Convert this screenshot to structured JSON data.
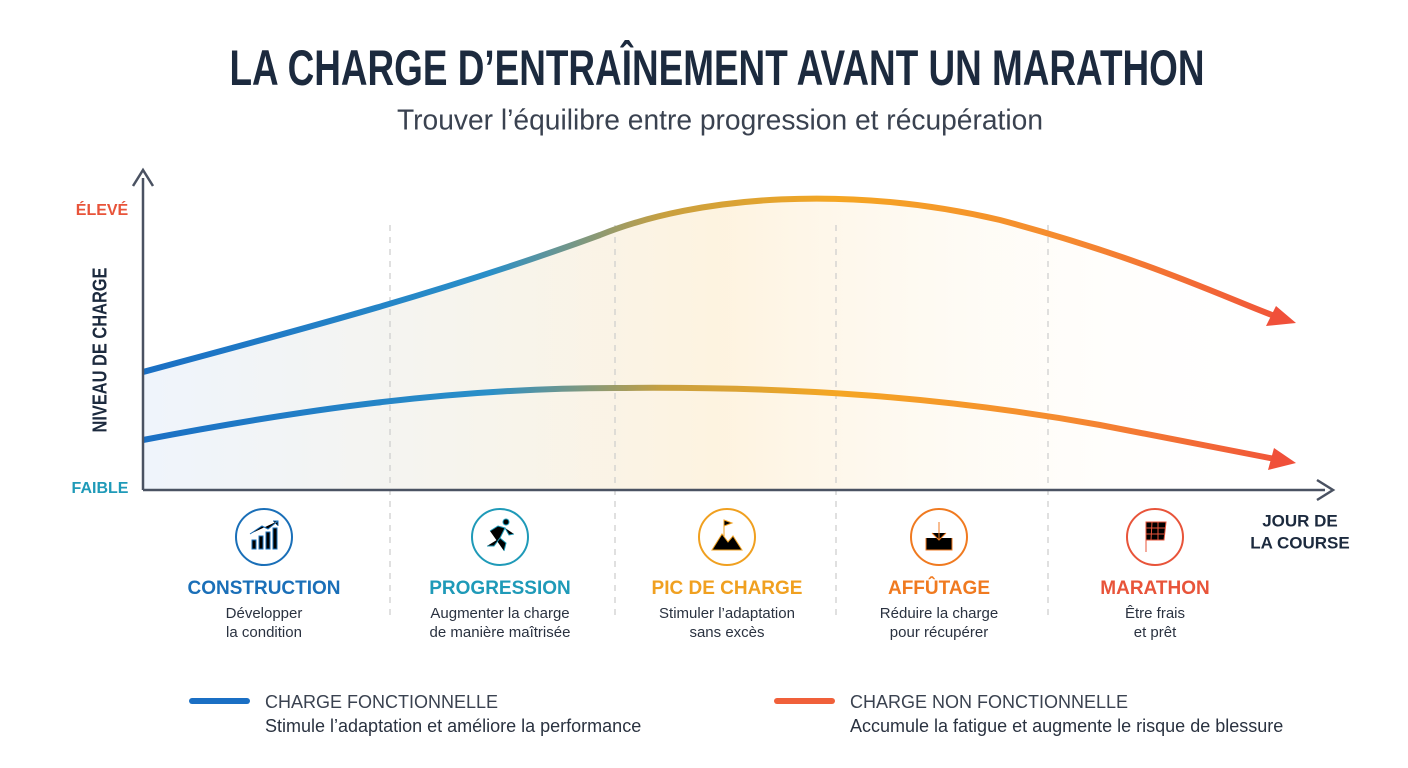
{
  "header": {
    "title": "LA CHARGE D’ENTRAÎNEMENT AVANT UN MARATHON",
    "subtitle": "Trouver l’équilibre entre progression et récupération"
  },
  "axis": {
    "y_label": "NIVEAU DE CHARGE",
    "y_high": "ÉLEVÉ",
    "y_low": "FAIBLE",
    "x_label": [
      "JOUR DE",
      "LA COURSE"
    ]
  },
  "phases": [
    {
      "title": "CONSTRUCTION",
      "color": "#1a6fb8",
      "lines": [
        "Développer",
        "la condition"
      ]
    },
    {
      "title": "PROGRESSION",
      "color": "#1f9ab8",
      "lines": [
        "Augmenter la charge",
        "de manière maîtrisée"
      ]
    },
    {
      "title": "PIC DE CHARGE",
      "color": "#f0a020",
      "lines": [
        "Stimuler l’adaptation",
        "sans excès"
      ]
    },
    {
      "title": "AFFÛTAGE",
      "color": "#f07a20",
      "lines": [
        "Réduire la charge",
        "pour récupérer"
      ]
    },
    {
      "title": "MARATHON",
      "color": "#e8543a",
      "lines": [
        "Être frais",
        "et prêt"
      ]
    }
  ],
  "legend": [
    {
      "label": "CHARGE FONCTIONNELLE",
      "description": "Stimule l’adaptation et améliore la performance",
      "color": "#1a6fc4"
    },
    {
      "label": "CHARGE NON FONCTIONNELLE",
      "description": "Accumule la fatigue et augmente le risque de blessure",
      "color": "#f0603a"
    }
  ]
}
